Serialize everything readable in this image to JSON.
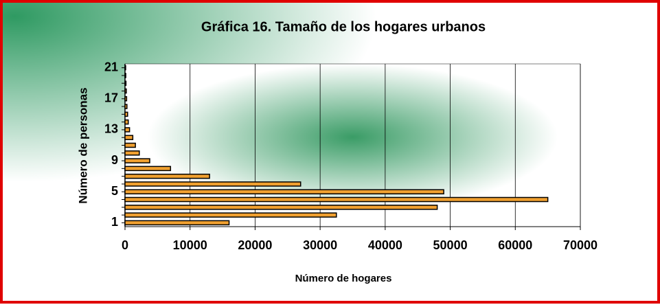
{
  "chart_data": {
    "type": "bar",
    "orientation": "horizontal",
    "title": "Gráfica 16. Tamaño de  los hogares urbanos",
    "xlabel": "Número de hogares",
    "ylabel": "Número de personas",
    "categories": [
      "1",
      null,
      null,
      null,
      "5",
      null,
      null,
      null,
      "9",
      null,
      null,
      null,
      "13",
      null,
      null,
      null,
      "17",
      null,
      null,
      null,
      "21"
    ],
    "values": [
      16000,
      32500,
      48000,
      65000,
      49000,
      27000,
      13000,
      7000,
      3800,
      2200,
      1600,
      1200,
      700,
      500,
      400,
      300,
      250,
      200,
      150,
      120,
      100
    ],
    "color": "#f0a030",
    "xlim": [
      0,
      70000
    ],
    "xticks": [
      0,
      10000,
      20000,
      30000,
      40000,
      50000,
      60000,
      70000
    ],
    "grid": true
  }
}
